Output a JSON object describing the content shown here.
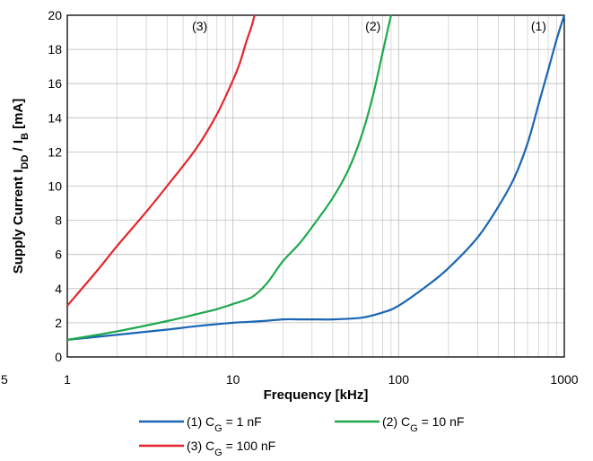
{
  "chart_data": {
    "type": "line",
    "xlabel": "Frequency [kHz]",
    "ylabel_parts": [
      {
        "t": "Supply Current I",
        "sub": false
      },
      {
        "t": "DD",
        "sub": true
      },
      {
        "t": " / I",
        "sub": false
      },
      {
        "t": "B",
        "sub": true
      },
      {
        "t": " [mA]",
        "sub": false
      }
    ],
    "x_scale": "log",
    "xlim": [
      1,
      1000
    ],
    "ylim": [
      0,
      20
    ],
    "grid": true,
    "x_ticks": [
      {
        "v": 1,
        "label": "1"
      },
      {
        "v": 10,
        "label": "10"
      },
      {
        "v": 100,
        "label": "100"
      },
      {
        "v": 1000,
        "label": "1000"
      }
    ],
    "stray_label": "5",
    "y_ticks": [
      {
        "v": 0,
        "label": "0"
      },
      {
        "v": 2,
        "label": "2"
      },
      {
        "v": 4,
        "label": "4"
      },
      {
        "v": 6,
        "label": "6"
      },
      {
        "v": 8,
        "label": "8"
      },
      {
        "v": 10,
        "label": "10"
      },
      {
        "v": 12,
        "label": "12"
      },
      {
        "v": 14,
        "label": "14"
      },
      {
        "v": 16,
        "label": "16"
      },
      {
        "v": 18,
        "label": "18"
      },
      {
        "v": 20,
        "label": "20"
      }
    ],
    "legend_position": "bottom",
    "series": [
      {
        "name_parts": [
          {
            "t": "(1) C",
            "sub": false
          },
          {
            "t": "G",
            "sub": true
          },
          {
            "t": " = 1 nF",
            "sub": false
          }
        ],
        "label": "(1)",
        "label_at": [
          700,
          19.1
        ],
        "color": "#1a66b3",
        "points": [
          [
            1,
            1.0
          ],
          [
            2,
            1.3
          ],
          [
            4,
            1.6
          ],
          [
            6,
            1.8
          ],
          [
            10,
            2.0
          ],
          [
            15,
            2.1
          ],
          [
            20,
            2.2
          ],
          [
            25,
            2.2
          ],
          [
            30,
            2.2
          ],
          [
            40,
            2.2
          ],
          [
            60,
            2.3
          ],
          [
            80,
            2.6
          ],
          [
            100,
            3.0
          ],
          [
            150,
            4.2
          ],
          [
            200,
            5.2
          ],
          [
            300,
            7.0
          ],
          [
            400,
            8.8
          ],
          [
            500,
            10.5
          ],
          [
            600,
            12.5
          ],
          [
            700,
            14.8
          ],
          [
            800,
            16.8
          ],
          [
            900,
            18.6
          ],
          [
            1000,
            20.0
          ]
        ]
      },
      {
        "name_parts": [
          {
            "t": "(2) C",
            "sub": false
          },
          {
            "t": "G",
            "sub": true
          },
          {
            "t": " = 10 nF",
            "sub": false
          }
        ],
        "label": "(2)",
        "label_at": [
          70,
          19.1
        ],
        "color": "#1fa84e",
        "points": [
          [
            1,
            1.0
          ],
          [
            2,
            1.5
          ],
          [
            4,
            2.1
          ],
          [
            6,
            2.5
          ],
          [
            8,
            2.8
          ],
          [
            10,
            3.1
          ],
          [
            13,
            3.5
          ],
          [
            16,
            4.3
          ],
          [
            20,
            5.6
          ],
          [
            25,
            6.6
          ],
          [
            30,
            7.6
          ],
          [
            40,
            9.3
          ],
          [
            50,
            11.0
          ],
          [
            60,
            13.0
          ],
          [
            70,
            15.3
          ],
          [
            80,
            17.8
          ],
          [
            90,
            20.0
          ]
        ]
      },
      {
        "name_parts": [
          {
            "t": "(3) C",
            "sub": false
          },
          {
            "t": "G",
            "sub": true
          },
          {
            "t": " = 100 nF",
            "sub": false
          }
        ],
        "label": "(3)",
        "label_at": [
          6.3,
          19.1
        ],
        "color": "#e3262d",
        "points": [
          [
            1,
            3.0
          ],
          [
            1.5,
            5.0
          ],
          [
            2,
            6.5
          ],
          [
            3,
            8.5
          ],
          [
            4,
            10.0
          ],
          [
            6,
            12.2
          ],
          [
            8,
            14.2
          ],
          [
            10,
            16.2
          ],
          [
            11,
            17.2
          ],
          [
            12,
            18.4
          ],
          [
            13,
            19.4
          ],
          [
            13.5,
            20.0
          ]
        ]
      }
    ]
  }
}
